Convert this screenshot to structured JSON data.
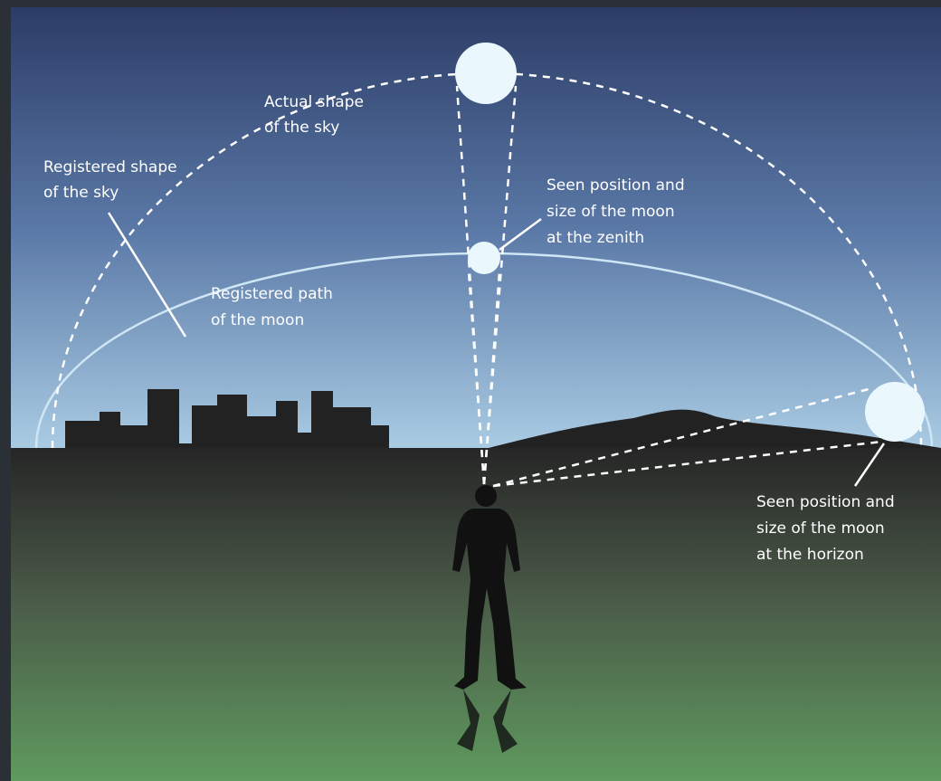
{
  "labels": [
    {
      "lines": [
        "Actual shape",
        "of the sky"
      ]
    },
    {
      "lines": [
        "Registered shape",
        "of the sky"
      ]
    },
    {
      "lines": [
        "Seen position and",
        "size of the moon",
        "at the zenith"
      ]
    },
    {
      "lines": [
        "Registered path",
        "of the moon"
      ]
    },
    {
      "lines": [
        "Seen position and",
        "size of the moon",
        "at the horizon"
      ]
    }
  ]
}
